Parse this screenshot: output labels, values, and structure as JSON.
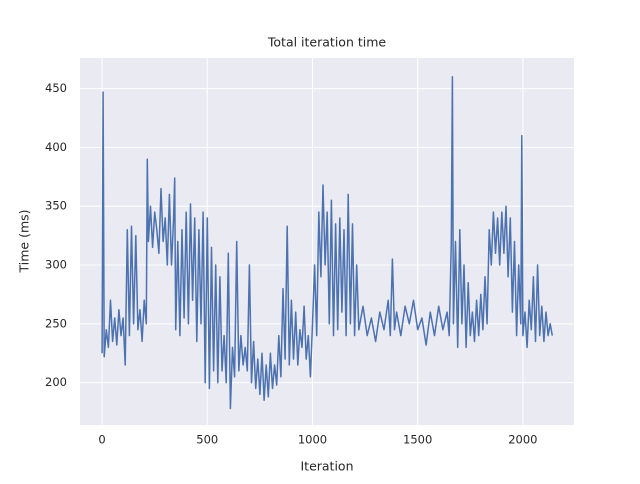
{
  "chart_data": {
    "type": "line",
    "title": "Total iteration time",
    "xlabel": "Iteration",
    "ylabel": "Time (ms)",
    "xlim": [
      -105,
      2243
    ],
    "ylim": [
      164,
      476
    ],
    "xticks": [
      0,
      500,
      1000,
      1500,
      2000
    ],
    "yticks": [
      200,
      250,
      300,
      350,
      400,
      450
    ],
    "grid": true,
    "series": [
      {
        "color": "#4c72b0",
        "x": [
          0,
          5,
          10,
          20,
          30,
          40,
          50,
          60,
          70,
          80,
          90,
          100,
          110,
          120,
          130,
          140,
          150,
          160,
          170,
          180,
          190,
          200,
          210,
          215,
          220,
          230,
          240,
          250,
          260,
          270,
          280,
          290,
          300,
          310,
          320,
          330,
          340,
          345,
          350,
          360,
          370,
          380,
          390,
          400,
          410,
          420,
          430,
          440,
          450,
          460,
          470,
          480,
          490,
          500,
          510,
          520,
          530,
          540,
          550,
          560,
          570,
          580,
          590,
          600,
          610,
          620,
          630,
          640,
          650,
          660,
          670,
          680,
          690,
          700,
          710,
          720,
          730,
          740,
          750,
          760,
          770,
          780,
          790,
          800,
          810,
          820,
          830,
          840,
          850,
          860,
          870,
          880,
          890,
          900,
          910,
          920,
          930,
          940,
          950,
          960,
          970,
          980,
          990,
          1000,
          1010,
          1020,
          1030,
          1040,
          1050,
          1060,
          1070,
          1080,
          1090,
          1100,
          1110,
          1120,
          1130,
          1140,
          1150,
          1160,
          1170,
          1180,
          1190,
          1200,
          1210,
          1220,
          1240,
          1260,
          1280,
          1300,
          1320,
          1340,
          1360,
          1370,
          1380,
          1390,
          1400,
          1420,
          1440,
          1460,
          1480,
          1500,
          1520,
          1540,
          1560,
          1580,
          1600,
          1620,
          1640,
          1650,
          1660,
          1665,
          1670,
          1680,
          1690,
          1700,
          1710,
          1720,
          1730,
          1740,
          1750,
          1760,
          1770,
          1780,
          1790,
          1800,
          1810,
          1820,
          1830,
          1840,
          1850,
          1860,
          1870,
          1880,
          1890,
          1900,
          1910,
          1920,
          1930,
          1940,
          1950,
          1960,
          1970,
          1980,
          1990,
          1995,
          2000,
          2010,
          2020,
          2030,
          2040,
          2050,
          2060,
          2070,
          2080,
          2090,
          2100,
          2110,
          2120,
          2130,
          2140
        ],
        "values": [
          225,
          447,
          222,
          245,
          230,
          270,
          235,
          255,
          232,
          262,
          240,
          255,
          215,
          330,
          240,
          333,
          250,
          325,
          245,
          262,
          235,
          270,
          250,
          390,
          320,
          350,
          315,
          345,
          330,
          310,
          365,
          320,
          340,
          300,
          360,
          300,
          340,
          374,
          245,
          320,
          240,
          330,
          255,
          345,
          250,
          352,
          270,
          340,
          235,
          330,
          250,
          345,
          200,
          340,
          195,
          315,
          210,
          300,
          200,
          290,
          210,
          240,
          200,
          310,
          178,
          230,
          205,
          320,
          210,
          240,
          215,
          230,
          210,
          300,
          200,
          235,
          195,
          220,
          190,
          225,
          185,
          215,
          188,
          225,
          195,
          215,
          198,
          240,
          205,
          280,
          220,
          333,
          215,
          270,
          220,
          260,
          215,
          245,
          230,
          265,
          220,
          240,
          205,
          250,
          300,
          240,
          345,
          290,
          368,
          300,
          345,
          250,
          355,
          240,
          335,
          245,
          340,
          260,
          330,
          240,
          360,
          250,
          335,
          240,
          300,
          245,
          265,
          240,
          255,
          235,
          260,
          245,
          270,
          240,
          305,
          245,
          260,
          240,
          265,
          250,
          270,
          245,
          255,
          232,
          260,
          240,
          265,
          245,
          260,
          240,
          320,
          460,
          250,
          320,
          230,
          330,
          250,
          300,
          230,
          285,
          240,
          260,
          235,
          270,
          240,
          275,
          245,
          290,
          250,
          330,
          300,
          345,
          310,
          340,
          300,
          345,
          310,
          350,
          290,
          340,
          260,
          320,
          240,
          300,
          250,
          410,
          240,
          260,
          230,
          270,
          245,
          290,
          235,
          300,
          240,
          265,
          235,
          260,
          240,
          250,
          240
        ]
      }
    ]
  }
}
